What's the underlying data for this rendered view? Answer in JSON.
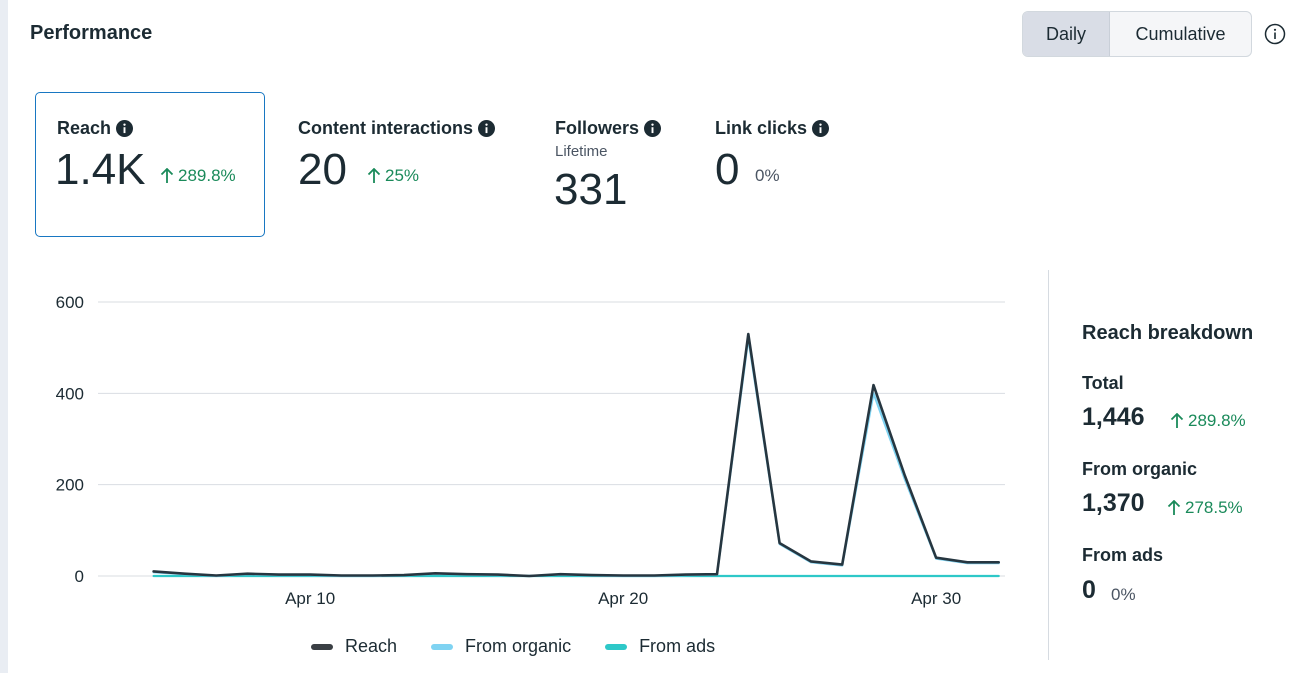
{
  "header": {
    "title": "Performance",
    "toggle": {
      "daily_label": "Daily",
      "cumulative_label": "Cumulative",
      "selected": "Daily"
    }
  },
  "metrics": [
    {
      "label": "Reach",
      "value": "1.4K",
      "change": "289.8%",
      "direction": "up",
      "selected": true
    },
    {
      "label": "Content interactions",
      "value": "20",
      "change": "25%",
      "direction": "up"
    },
    {
      "label": "Followers",
      "sublabel": "Lifetime",
      "value": "331"
    },
    {
      "label": "Link clicks",
      "value": "0",
      "change": "0%",
      "direction": "none"
    }
  ],
  "breakdown": {
    "title": "Reach breakdown",
    "items": [
      {
        "label": "Total",
        "value": "1,446",
        "change": "289.8%",
        "direction": "up"
      },
      {
        "label": "From organic",
        "value": "1,370",
        "change": "278.5%",
        "direction": "up"
      },
      {
        "label": "From ads",
        "value": "0",
        "change": "0%",
        "direction": "none"
      }
    ]
  },
  "colors": {
    "reach": "#263640",
    "organic": "#7fd3f2",
    "ads": "#2ec8c8",
    "positive": "#1a8a5a",
    "accent": "#1877c2"
  },
  "chart_data": {
    "type": "line",
    "x": [
      5,
      6,
      7,
      8,
      9,
      10,
      11,
      12,
      13,
      14,
      15,
      16,
      17,
      18,
      19,
      20,
      21,
      22,
      23,
      24,
      25,
      26,
      27,
      28,
      29,
      30,
      31,
      32
    ],
    "x_ticks": [
      {
        "value": 10,
        "label": "Apr 10"
      },
      {
        "value": 20,
        "label": "Apr 20"
      },
      {
        "value": 30,
        "label": "Apr 30"
      }
    ],
    "ylim": [
      0,
      600
    ],
    "y_ticks": [
      0,
      200,
      400,
      600
    ],
    "series": [
      {
        "name": "Reach",
        "values": [
          10,
          5,
          1,
          5,
          3,
          3,
          1,
          1,
          2,
          6,
          4,
          3,
          0,
          4,
          2,
          1,
          1,
          3,
          4,
          530,
          72,
          32,
          25,
          418,
          220,
          40,
          30,
          30
        ]
      },
      {
        "name": "From organic",
        "values": [
          8,
          4,
          0,
          4,
          2,
          2,
          0,
          0,
          1,
          5,
          3,
          2,
          0,
          3,
          1,
          0,
          0,
          2,
          3,
          520,
          70,
          30,
          23,
          400,
          212,
          38,
          28,
          28
        ]
      },
      {
        "name": "From ads",
        "values": [
          0,
          0,
          0,
          0,
          0,
          0,
          0,
          0,
          0,
          0,
          0,
          0,
          0,
          0,
          0,
          0,
          0,
          0,
          0,
          0,
          0,
          0,
          0,
          0,
          0,
          0,
          0,
          0
        ]
      }
    ],
    "legend": [
      "Reach",
      "From organic",
      "From ads"
    ],
    "legend_position": "bottom"
  }
}
